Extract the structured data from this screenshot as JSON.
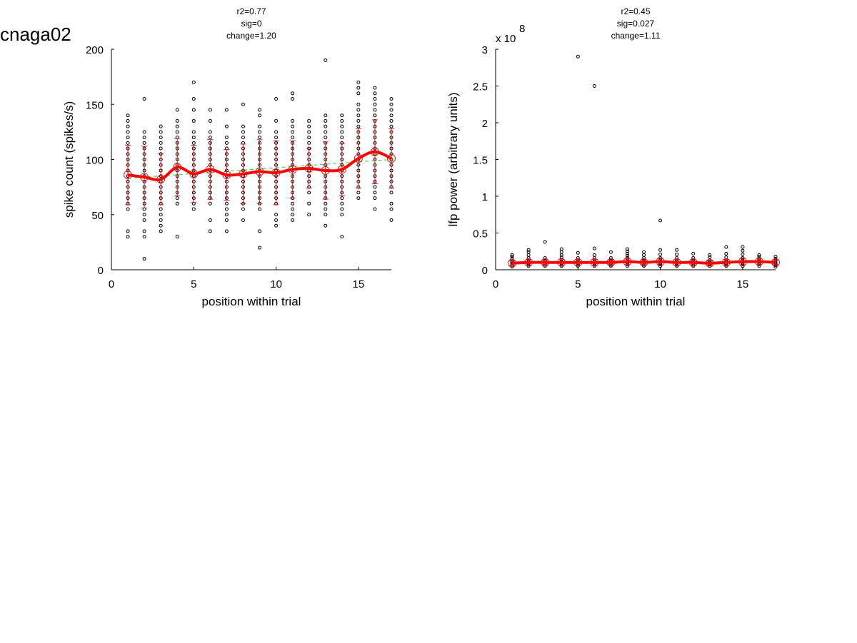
{
  "figure_title": "cnaga02",
  "chart_data": [
    {
      "type": "scatter",
      "title_lines": [
        "r2=0.77",
        "sig=0",
        "change=1.20"
      ],
      "xlabel": "position within trial",
      "ylabel": "spike count (spikes/s)",
      "xlim": [
        0,
        17
      ],
      "ylim": [
        0,
        200
      ],
      "xticks": [
        0,
        5,
        10,
        15
      ],
      "yticks": [
        0,
        50,
        100,
        150,
        200
      ],
      "exponent_label": "",
      "trials": [
        [
          30,
          35,
          55,
          60,
          65,
          70,
          75,
          80,
          85,
          90,
          95,
          100,
          105,
          110,
          115,
          120,
          125,
          130,
          135,
          140
        ],
        [
          10,
          30,
          35,
          45,
          50,
          55,
          60,
          65,
          70,
          75,
          80,
          85,
          90,
          95,
          100,
          105,
          110,
          115,
          120,
          125,
          155
        ],
        [
          35,
          40,
          45,
          50,
          55,
          60,
          65,
          70,
          75,
          80,
          85,
          90,
          95,
          100,
          105,
          110,
          115,
          120,
          125,
          130
        ],
        [
          30,
          60,
          65,
          70,
          75,
          80,
          85,
          90,
          95,
          100,
          105,
          110,
          115,
          120,
          125,
          130,
          135,
          145
        ],
        [
          55,
          60,
          65,
          70,
          75,
          80,
          85,
          90,
          95,
          100,
          105,
          110,
          115,
          120,
          125,
          135,
          145,
          155,
          170
        ],
        [
          35,
          45,
          60,
          65,
          70,
          75,
          80,
          85,
          90,
          95,
          100,
          105,
          110,
          115,
          120,
          125,
          135,
          145
        ],
        [
          35,
          45,
          50,
          55,
          60,
          65,
          70,
          75,
          80,
          85,
          90,
          95,
          100,
          105,
          110,
          115,
          120,
          130,
          145
        ],
        [
          45,
          55,
          60,
          65,
          70,
          75,
          80,
          85,
          90,
          95,
          100,
          105,
          110,
          115,
          120,
          125,
          130,
          150
        ],
        [
          20,
          35,
          55,
          60,
          65,
          70,
          75,
          80,
          85,
          90,
          95,
          100,
          105,
          110,
          115,
          120,
          125,
          130,
          140,
          145
        ],
        [
          40,
          45,
          50,
          60,
          65,
          70,
          75,
          80,
          85,
          90,
          95,
          100,
          105,
          110,
          115,
          120,
          125,
          135,
          155
        ],
        [
          45,
          50,
          55,
          60,
          65,
          70,
          75,
          80,
          85,
          90,
          95,
          100,
          105,
          110,
          115,
          120,
          125,
          130,
          135,
          155,
          160
        ],
        [
          50,
          60,
          70,
          75,
          80,
          85,
          90,
          95,
          100,
          105,
          110,
          115,
          120,
          125,
          130,
          135
        ],
        [
          40,
          50,
          55,
          60,
          65,
          70,
          75,
          80,
          85,
          90,
          95,
          100,
          105,
          110,
          115,
          120,
          125,
          130,
          135,
          140,
          190
        ],
        [
          30,
          50,
          55,
          60,
          65,
          70,
          75,
          80,
          85,
          90,
          95,
          100,
          105,
          110,
          115,
          120,
          125,
          130,
          135,
          140
        ],
        [
          65,
          70,
          75,
          80,
          85,
          90,
          95,
          100,
          105,
          110,
          115,
          120,
          125,
          130,
          135,
          140,
          145,
          150,
          160,
          165,
          170
        ],
        [
          55,
          65,
          70,
          75,
          80,
          85,
          90,
          95,
          100,
          105,
          110,
          115,
          120,
          125,
          130,
          135,
          140,
          145,
          150,
          155,
          160,
          165
        ],
        [
          45,
          55,
          60,
          70,
          75,
          80,
          85,
          90,
          95,
          100,
          105,
          110,
          115,
          120,
          125,
          130,
          135,
          140,
          145,
          150,
          155
        ]
      ],
      "means": [
        86,
        84,
        82,
        93,
        87,
        91,
        86,
        87,
        89,
        88,
        91,
        92,
        90,
        91,
        101,
        107,
        101
      ],
      "errors": [
        27,
        28,
        23,
        26,
        26,
        27,
        23,
        27,
        29,
        29,
        26,
        18,
        26,
        24,
        27,
        29,
        27
      ],
      "fit": {
        "start": 83,
        "end": 100
      }
    },
    {
      "type": "scatter",
      "title_lines": [
        "r2=0.45",
        "sig=0.027",
        "change=1.11"
      ],
      "xlabel": "position within trial",
      "ylabel": "lfp power (arbitrary units)",
      "xlim": [
        0,
        17
      ],
      "ylim": [
        0,
        3
      ],
      "xticks": [
        0,
        5,
        10,
        15
      ],
      "yticks": [
        0,
        0.5,
        1,
        1.5,
        2,
        2.5,
        3
      ],
      "exponent_label": "x 10",
      "exponent_value": "8",
      "trials": [
        [
          0.04,
          0.06,
          0.08,
          0.1,
          0.12,
          0.15,
          0.18,
          0.2
        ],
        [
          0.05,
          0.07,
          0.09,
          0.11,
          0.13,
          0.16,
          0.2,
          0.24,
          0.27
        ],
        [
          0.05,
          0.07,
          0.09,
          0.11,
          0.13,
          0.16,
          0.38
        ],
        [
          0.05,
          0.07,
          0.09,
          0.11,
          0.14,
          0.17,
          0.2,
          0.24,
          0.28
        ],
        [
          0.05,
          0.07,
          0.09,
          0.11,
          0.13,
          0.16,
          0.23,
          2.9
        ],
        [
          0.05,
          0.07,
          0.09,
          0.11,
          0.13,
          0.16,
          0.2,
          0.29,
          2.5
        ],
        [
          0.05,
          0.07,
          0.09,
          0.11,
          0.13,
          0.16,
          0.24
        ],
        [
          0.05,
          0.07,
          0.09,
          0.11,
          0.13,
          0.16,
          0.19,
          0.22,
          0.25,
          0.28
        ],
        [
          0.05,
          0.07,
          0.09,
          0.11,
          0.13,
          0.16,
          0.2,
          0.24
        ],
        [
          0.05,
          0.07,
          0.09,
          0.11,
          0.13,
          0.16,
          0.21,
          0.27,
          0.67
        ],
        [
          0.05,
          0.07,
          0.09,
          0.11,
          0.13,
          0.16,
          0.21,
          0.27
        ],
        [
          0.05,
          0.07,
          0.09,
          0.11,
          0.13,
          0.16,
          0.22
        ],
        [
          0.05,
          0.07,
          0.09,
          0.11,
          0.13,
          0.17,
          0.2
        ],
        [
          0.05,
          0.07,
          0.09,
          0.11,
          0.13,
          0.17,
          0.22,
          0.31
        ],
        [
          0.05,
          0.07,
          0.09,
          0.11,
          0.13,
          0.16,
          0.21,
          0.26,
          0.31
        ],
        [
          0.05,
          0.07,
          0.09,
          0.11,
          0.13,
          0.15,
          0.18,
          0.2
        ],
        [
          0.04,
          0.06,
          0.08,
          0.1,
          0.12,
          0.15,
          0.18
        ]
      ],
      "means": [
        0.09,
        0.1,
        0.1,
        0.1,
        0.1,
        0.1,
        0.1,
        0.11,
        0.1,
        0.11,
        0.1,
        0.1,
        0.09,
        0.1,
        0.11,
        0.11,
        0.1
      ],
      "errors": [
        0.03,
        0.04,
        0.03,
        0.04,
        0.04,
        0.04,
        0.03,
        0.04,
        0.03,
        0.05,
        0.04,
        0.03,
        0.03,
        0.04,
        0.05,
        0.04,
        0.03
      ],
      "fit": {
        "start": 0.1,
        "end": 0.11
      }
    }
  ],
  "colors": {
    "mean_line": "#ff0000",
    "mean_marker": "#d22020",
    "errorbar": "#d22020",
    "fit_line": "#32cd32",
    "points": "#000000",
    "axes": "#000000"
  }
}
